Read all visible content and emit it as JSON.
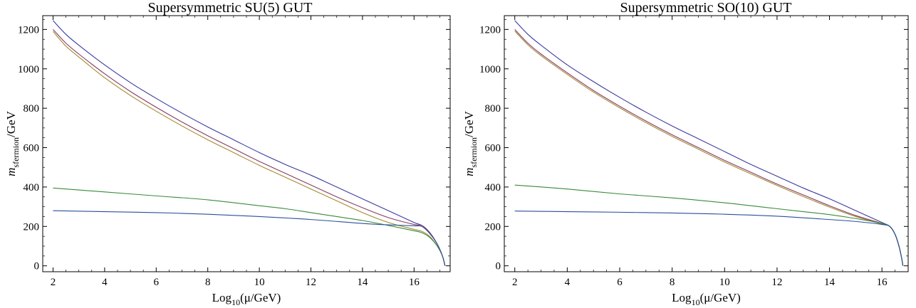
{
  "chart_data": [
    {
      "type": "line",
      "title": "Supersymmetric SU(5) GUT",
      "xlabel": {
        "base": "Log",
        "sub": "10",
        "rest": "(μ/GeV)"
      },
      "ylabel": {
        "main": "m",
        "sub": "sfermion",
        "rest": "/GeV"
      },
      "xlim": [
        1.6,
        17.4
      ],
      "ylim": [
        -30,
        1270
      ],
      "xticks": [
        "2",
        "4",
        "6",
        "8",
        "10",
        "12",
        "14",
        "16"
      ],
      "yticks": [
        "0",
        "200",
        "400",
        "600",
        "800",
        "1000",
        "1200"
      ],
      "grid": false,
      "legend": "none",
      "series": [
        {
          "color": "#3a3aa0",
          "x": [
            2,
            2.5,
            3,
            4,
            5,
            6,
            7,
            8,
            9,
            10,
            11,
            12,
            13,
            14,
            15,
            16,
            16.3,
            16.6,
            16.9,
            17.1,
            17.2
          ],
          "y": [
            1245,
            1175,
            1120,
            1020,
            930,
            850,
            775,
            705,
            640,
            575,
            515,
            460,
            400,
            340,
            280,
            220,
            205,
            170,
            110,
            50,
            0
          ]
        },
        {
          "color": "#8b3a62",
          "x": [
            2,
            2.5,
            3,
            4,
            5,
            6,
            7,
            8,
            9,
            10,
            11,
            12,
            13,
            14,
            15,
            16,
            16.3,
            16.6,
            16.9,
            17.1,
            17.2
          ],
          "y": [
            1200,
            1130,
            1075,
            975,
            885,
            805,
            730,
            660,
            595,
            530,
            470,
            410,
            350,
            295,
            245,
            210,
            205,
            170,
            110,
            50,
            0
          ]
        },
        {
          "color": "#a08a30",
          "x": [
            2,
            2.5,
            3,
            4,
            5,
            6,
            7,
            8,
            9,
            10,
            11,
            12,
            13,
            14,
            15,
            16,
            16.3,
            16.6,
            16.9,
            17.1,
            17.2
          ],
          "y": [
            1190,
            1115,
            1060,
            955,
            865,
            785,
            710,
            640,
            575,
            510,
            450,
            390,
            330,
            270,
            220,
            185,
            175,
            150,
            100,
            50,
            0
          ]
        },
        {
          "color": "#3a8a3a",
          "x": [
            2,
            4,
            6,
            8,
            10,
            11,
            12,
            13,
            14,
            15,
            16,
            16.3,
            16.6,
            16.9,
            17.1,
            17.2
          ],
          "y": [
            395,
            375,
            355,
            335,
            305,
            290,
            270,
            250,
            230,
            205,
            178,
            168,
            145,
            100,
            50,
            0
          ]
        },
        {
          "color": "#2a4f9a",
          "x": [
            2,
            4,
            6,
            8,
            10,
            12,
            14,
            15,
            16,
            16.3,
            16.6,
            16.9,
            17.1,
            17.2
          ],
          "y": [
            280,
            275,
            270,
            262,
            250,
            235,
            215,
            208,
            203,
            200,
            165,
            110,
            50,
            0
          ]
        }
      ]
    },
    {
      "type": "line",
      "title": "Supersymmetric SO(10) GUT",
      "xlabel": {
        "base": "Log",
        "sub": "10",
        "rest": "(μ/GeV)"
      },
      "ylabel": {
        "main": "m",
        "sub": "sfermion",
        "rest": "/GeV"
      },
      "xlim": [
        1.6,
        17.0
      ],
      "ylim": [
        -30,
        1270
      ],
      "xticks": [
        "2",
        "4",
        "6",
        "8",
        "10",
        "12",
        "14",
        "16"
      ],
      "yticks": [
        "0",
        "200",
        "400",
        "600",
        "800",
        "1000",
        "1200"
      ],
      "grid": false,
      "legend": "none",
      "series": [
        {
          "color": "#3a3aa0",
          "x": [
            2,
            2.5,
            3,
            4,
            5,
            6,
            7,
            8,
            9,
            10,
            11,
            12,
            13,
            14,
            15,
            16,
            16.3,
            16.5,
            16.65,
            16.75,
            16.8
          ],
          "y": [
            1245,
            1175,
            1120,
            1020,
            935,
            855,
            780,
            710,
            645,
            580,
            515,
            455,
            395,
            340,
            280,
            220,
            200,
            160,
            100,
            40,
            0
          ]
        },
        {
          "color": "#8b3a62",
          "x": [
            2,
            2.5,
            3,
            4,
            5,
            6,
            7,
            8,
            9,
            10,
            11,
            12,
            13,
            14,
            15,
            16,
            16.3,
            16.5,
            16.65,
            16.75,
            16.8
          ],
          "y": [
            1200,
            1130,
            1075,
            980,
            890,
            810,
            735,
            665,
            600,
            535,
            475,
            415,
            360,
            305,
            255,
            215,
            200,
            160,
            100,
            40,
            0
          ]
        },
        {
          "color": "#a08a30",
          "x": [
            2,
            2.5,
            3,
            4,
            5,
            6,
            7,
            8,
            9,
            10,
            11,
            12,
            13,
            14,
            15,
            16,
            16.3,
            16.5,
            16.65,
            16.75,
            16.8
          ],
          "y": [
            1192,
            1122,
            1067,
            972,
            882,
            802,
            727,
            657,
            592,
            527,
            467,
            408,
            352,
            298,
            250,
            212,
            200,
            160,
            100,
            40,
            0
          ]
        },
        {
          "color": "#3a8a3a",
          "x": [
            2,
            4,
            6,
            8,
            10,
            11,
            12,
            13,
            14,
            15,
            16,
            16.3,
            16.5,
            16.65,
            16.75,
            16.8
          ],
          "y": [
            410,
            390,
            365,
            345,
            320,
            305,
            290,
            275,
            260,
            240,
            215,
            200,
            160,
            100,
            40,
            0
          ]
        },
        {
          "color": "#2a4f9a",
          "x": [
            2,
            4,
            6,
            8,
            10,
            12,
            14,
            15,
            16,
            16.3,
            16.5,
            16.65,
            16.75,
            16.8
          ],
          "y": [
            278,
            275,
            272,
            268,
            262,
            252,
            235,
            225,
            210,
            200,
            160,
            100,
            40,
            0
          ]
        }
      ]
    }
  ]
}
